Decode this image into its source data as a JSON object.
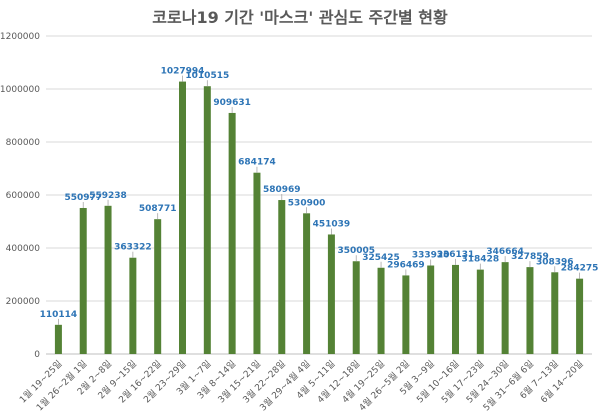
{
  "chart_data": {
    "type": "bar",
    "title": "코로나19 기간 '마스크' 관심도 주간별 현황",
    "xlabel": "",
    "ylabel": "",
    "ylim": [
      0,
      1200000
    ],
    "yticks": [
      "0",
      "200000",
      "400000",
      "600000",
      "800000",
      "1000000",
      "1200000"
    ],
    "grid": true,
    "bar_color": "#548235",
    "label_color": "#2e75b6",
    "categories": [
      "1월 19~25일",
      "1월 26~2월 1일",
      "2월 2~8일",
      "2월 9~15일",
      "2월 16~22일",
      "2월 23~29일",
      "3월 1~7일",
      "3월 8~14일",
      "3월 15~21일",
      "3월 22~28일",
      "3월 29~4월 4일",
      "4월 5~11일",
      "4월 12~18일",
      "4월 19~25일",
      "4월 26~5월 2일",
      "5월 3~9일",
      "5월 10~16일",
      "5월 17~23일",
      "5월 24~30일",
      "5월 31~6월 6일",
      "6월 7~13일",
      "6월 14~20일"
    ],
    "values": [
      110114,
      550977,
      559238,
      363322,
      508771,
      1027994,
      1010515,
      909631,
      684174,
      580969,
      530900,
      451039,
      350005,
      325425,
      296469,
      333920,
      336131,
      318428,
      346664,
      327859,
      308396,
      284275
    ],
    "value_labels": [
      "110114",
      "550977",
      "559238",
      "363322",
      "508771",
      "1027994",
      "1010515",
      "909631",
      "684174",
      "580969",
      "530900",
      "451039",
      "350005",
      "325425",
      "296469",
      "333920",
      "336131",
      "318428",
      "346664",
      "327859",
      "308396",
      "284275"
    ]
  }
}
